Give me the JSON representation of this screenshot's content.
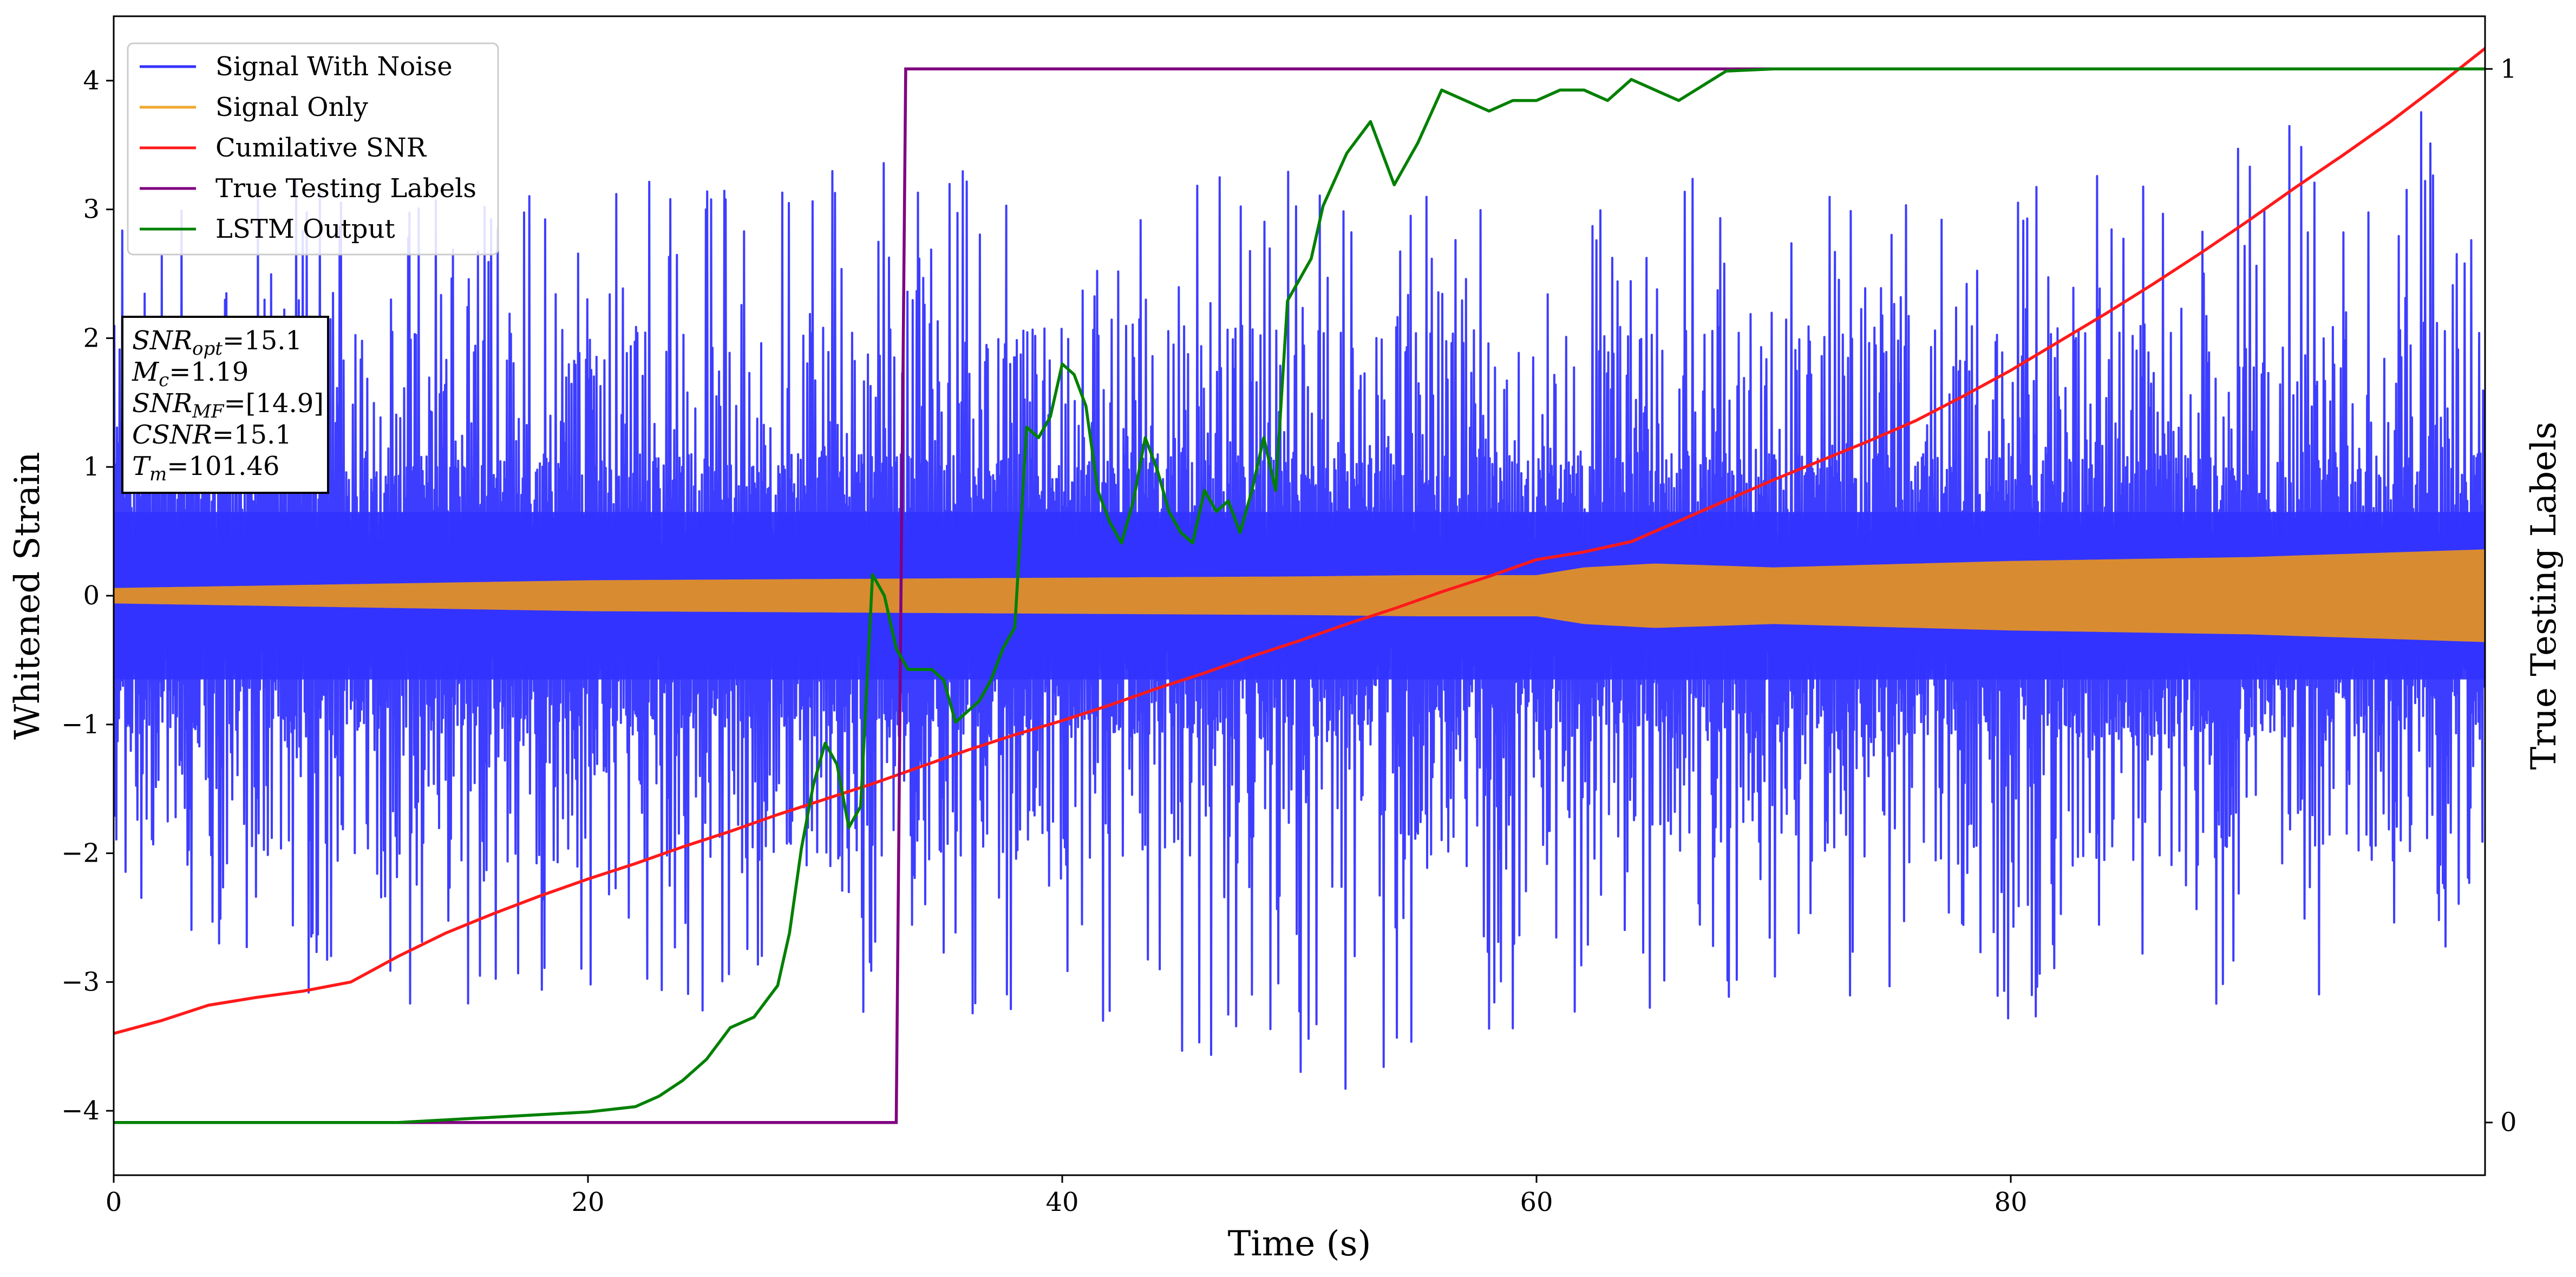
{
  "chart_data": {
    "type": "line",
    "title": "",
    "xlabel": "Time (s)",
    "ylabel": "Whitened Strain",
    "y2label": "True Testing Labels",
    "xlim": [
      0,
      100
    ],
    "ylim": [
      -4.5,
      4.5
    ],
    "y2lim": [
      -0.05,
      1.05
    ],
    "xticks": [
      0,
      20,
      40,
      60,
      80
    ],
    "xtick_labels": [
      "0",
      "20",
      "40",
      "60",
      "80"
    ],
    "yticks": [
      -4,
      -3,
      -2,
      -1,
      0,
      1,
      2,
      3,
      4
    ],
    "ytick_labels": [
      "−4",
      "−3",
      "−2",
      "−1",
      "0",
      "1",
      "2",
      "3",
      "4"
    ],
    "y2ticks": [
      0,
      1
    ],
    "y2tick_labels": [
      "0",
      "1"
    ],
    "grid": false,
    "legend_position": "top-left",
    "series": [
      {
        "name": "Signal With Noise",
        "color": "#3333ff",
        "axis": "left",
        "style": "noise",
        "envelope": {
          "x": [
            0,
            10,
            20,
            30,
            40,
            50,
            60,
            70,
            80,
            90,
            100
          ],
          "max": [
            3.0,
            3.3,
            3.3,
            3.4,
            3.3,
            3.3,
            3.5,
            3.2,
            3.4,
            4.0,
            3.7
          ],
          "min": [
            -2.8,
            -3.2,
            -3.3,
            -3.3,
            -3.3,
            -4.1,
            -3.3,
            -3.4,
            -3.3,
            -3.2,
            -3.0
          ],
          "dense_band": [
            0.4,
            0.4,
            0.4,
            0.4,
            0.4,
            0.4,
            0.4,
            0.4,
            0.4,
            0.4,
            0.4
          ]
        }
      },
      {
        "name": "Signal Only",
        "color": "#f0a830",
        "fill_color": "#d98b32",
        "axis": "left",
        "style": "band",
        "x": [
          0,
          10,
          20,
          30,
          40,
          50,
          55,
          60,
          62,
          65,
          70,
          80,
          90,
          100
        ],
        "amplitude": [
          0.06,
          0.09,
          0.12,
          0.13,
          0.14,
          0.15,
          0.16,
          0.16,
          0.22,
          0.25,
          0.22,
          0.27,
          0.3,
          0.36
        ]
      },
      {
        "name": "Cumilative SNR",
        "color": "#ff1a1a",
        "axis": "left",
        "x": [
          0,
          2,
          4,
          6,
          8,
          10,
          12,
          14,
          16,
          18,
          20,
          22,
          24,
          26,
          28,
          30,
          32,
          34,
          36,
          38,
          40,
          42,
          44,
          46,
          48,
          50,
          52,
          54,
          56,
          58,
          60,
          62,
          64,
          66,
          68,
          70,
          72,
          74,
          76,
          78,
          80,
          82,
          84,
          86,
          88,
          90,
          92,
          94,
          96,
          98,
          100
        ],
        "values": [
          -3.4,
          -3.3,
          -3.18,
          -3.12,
          -3.07,
          -3.0,
          -2.8,
          -2.62,
          -2.47,
          -2.33,
          -2.2,
          -2.08,
          -1.95,
          -1.83,
          -1.7,
          -1.58,
          -1.46,
          -1.33,
          -1.2,
          -1.08,
          -0.97,
          -0.85,
          -0.72,
          -0.6,
          -0.47,
          -0.35,
          -0.22,
          -0.1,
          0.03,
          0.15,
          0.28,
          0.34,
          0.42,
          0.58,
          0.74,
          0.9,
          1.05,
          1.2,
          1.36,
          1.55,
          1.75,
          1.97,
          2.19,
          2.42,
          2.66,
          2.91,
          3.17,
          3.42,
          3.68,
          3.96,
          4.25
        ]
      },
      {
        "name": "True Testing Labels",
        "color": "#800080",
        "axis": "right",
        "x": [
          0,
          33.0,
          33.4,
          100
        ],
        "values": [
          0,
          0,
          1,
          1
        ]
      },
      {
        "name": "LSTM Output",
        "color": "#008000",
        "axis": "right",
        "x": [
          0,
          12,
          16,
          20,
          22,
          23,
          24,
          25,
          26,
          27,
          28,
          28.5,
          29,
          29.5,
          30,
          30.5,
          31,
          31.5,
          32,
          32.5,
          33,
          33.5,
          34,
          34.5,
          35,
          35.5,
          36,
          36.5,
          37,
          37.5,
          38,
          38.5,
          39,
          39.5,
          40,
          40.5,
          41,
          41.5,
          42,
          42.5,
          43,
          43.5,
          44,
          44.5,
          45,
          45.5,
          46,
          46.5,
          47,
          47.5,
          48,
          48.5,
          49,
          49.5,
          50,
          50.5,
          51,
          52,
          53,
          54,
          55,
          56,
          57,
          58,
          59,
          60,
          61,
          62,
          63,
          64,
          65,
          66,
          68,
          70,
          72,
          100
        ],
        "values": [
          0,
          0,
          0.005,
          0.01,
          0.015,
          0.025,
          0.04,
          0.06,
          0.09,
          0.1,
          0.13,
          0.18,
          0.26,
          0.32,
          0.36,
          0.34,
          0.28,
          0.3,
          0.52,
          0.5,
          0.45,
          0.43,
          0.43,
          0.43,
          0.42,
          0.38,
          0.39,
          0.4,
          0.42,
          0.45,
          0.47,
          0.66,
          0.65,
          0.67,
          0.72,
          0.71,
          0.68,
          0.6,
          0.57,
          0.55,
          0.59,
          0.65,
          0.62,
          0.58,
          0.56,
          0.55,
          0.6,
          0.58,
          0.59,
          0.56,
          0.6,
          0.65,
          0.6,
          0.78,
          0.8,
          0.82,
          0.87,
          0.92,
          0.95,
          0.89,
          0.93,
          0.98,
          0.97,
          0.96,
          0.97,
          0.97,
          0.98,
          0.98,
          0.97,
          0.99,
          0.98,
          0.97,
          0.998,
          1.0,
          1.0,
          1.0
        ]
      }
    ],
    "annotations": [
      {
        "type": "textbox",
        "position": "left",
        "lines": [
          {
            "var": "SNR",
            "sub": "opt",
            "value": "=15.1"
          },
          {
            "var": "M",
            "sub": "c",
            "value": "=1.19"
          },
          {
            "var": "SNR",
            "sub": "MF",
            "value": "=[14.9]"
          },
          {
            "var": "CSNR",
            "sub": "",
            "value": "=15.1"
          },
          {
            "var": "T",
            "sub": "m",
            "value": "=101.46"
          }
        ]
      }
    ]
  }
}
